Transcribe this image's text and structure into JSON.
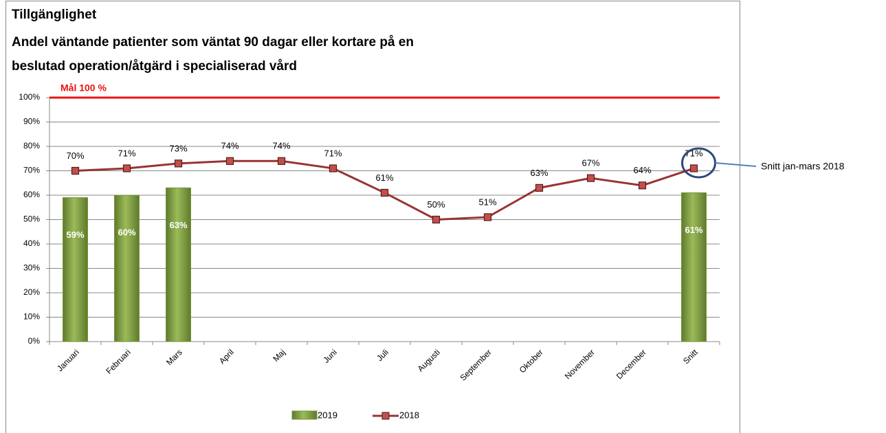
{
  "chart_data": {
    "type": "combo",
    "title": "Tillgänglighet",
    "subtitle": [
      "Andel väntande patienter som väntat 90 dagar eller kortare på en",
      "beslutad operation/åtgärd i specialiserad vård"
    ],
    "categories": [
      "Januari",
      "Februari",
      "Mars",
      "April",
      "Maj",
      "Juni",
      "Juli",
      "Augusti",
      "September",
      "Oktober",
      "November",
      "December",
      "Snitt"
    ],
    "series": [
      {
        "name": "2019",
        "type": "bar",
        "color": "#77933c",
        "values": [
          59,
          60,
          63,
          null,
          null,
          null,
          null,
          null,
          null,
          null,
          null,
          null,
          61
        ],
        "value_labels": [
          "59%",
          "60%",
          "63%",
          null,
          null,
          null,
          null,
          null,
          null,
          null,
          null,
          null,
          "61%"
        ]
      },
      {
        "name": "2018",
        "type": "line",
        "color": "#993333",
        "marker_color": "#c0504d",
        "values": [
          70,
          71,
          73,
          74,
          74,
          71,
          61,
          50,
          51,
          63,
          67,
          64,
          71
        ],
        "value_labels": [
          "70%",
          "71%",
          "73%",
          "74%",
          "74%",
          "71%",
          "61%",
          "50%",
          "51%",
          "63%",
          "67%",
          "64%",
          "71%"
        ]
      }
    ],
    "ylim": [
      0,
      100
    ],
    "yticks": [
      {
        "value": 0,
        "label": "0%"
      },
      {
        "value": 10,
        "label": "10%"
      },
      {
        "value": 20,
        "label": "20%"
      },
      {
        "value": 30,
        "label": "30%"
      },
      {
        "value": 40,
        "label": "40%"
      },
      {
        "value": 50,
        "label": "50%"
      },
      {
        "value": 60,
        "label": "60%"
      },
      {
        "value": 70,
        "label": "70%"
      },
      {
        "value": 80,
        "label": "80%"
      },
      {
        "value": 90,
        "label": "90%"
      },
      {
        "value": 100,
        "label": "100%"
      }
    ],
    "grid": true,
    "goal": {
      "value": 100,
      "label": "Mål 100 %",
      "color": "#ee1111"
    },
    "annotation": "Snitt jan-mars 2018",
    "legend": "bottom"
  }
}
